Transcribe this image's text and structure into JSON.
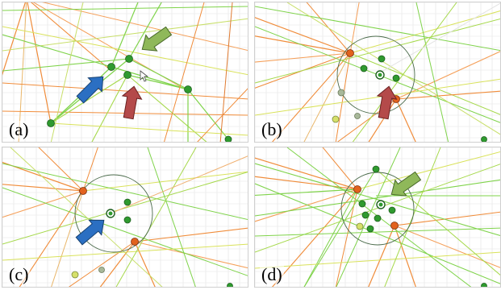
{
  "figure": {
    "panels": [
      {
        "id": "a",
        "label": "(a)"
      },
      {
        "id": "b",
        "label": "(b)"
      },
      {
        "id": "c",
        "label": "(c)"
      },
      {
        "id": "d",
        "label": "(d)"
      }
    ],
    "colors": {
      "grid": "#e3e3e3",
      "edge_green": "#7fd34a",
      "edge_yellow": "#d9e25a",
      "edge_orange": "#f08c3a",
      "node_green": "#2f9a2f",
      "node_orange": "#e2621d",
      "node_gray": "#a8b89a",
      "lens_circle": "#4a6a4a",
      "arrow_blue": "#2b6fc2",
      "arrow_red": "#b44a4a",
      "arrow_green": "#8fb85a"
    },
    "icons": [
      "mouse-cursor-icon",
      "arrow-icon"
    ]
  }
}
